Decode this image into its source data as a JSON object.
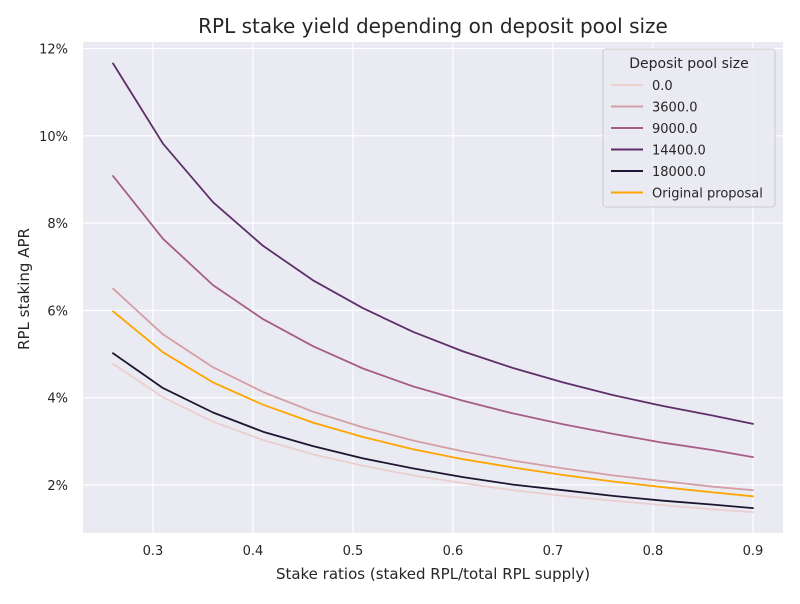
{
  "chart_data": {
    "type": "line",
    "title": "RPL stake yield depending on deposit pool size",
    "xlabel": "Stake ratios (staked RPL/total RPL supply)",
    "ylabel": "RPL staking APR",
    "xlim": [
      0.23,
      0.93
    ],
    "ylim": [
      0.009,
      0.1215
    ],
    "x_ticks": [
      0.3,
      0.4,
      0.5,
      0.6,
      0.7,
      0.8,
      0.9
    ],
    "x_tick_labels": [
      "0.3",
      "0.4",
      "0.5",
      "0.6",
      "0.7",
      "0.8",
      "0.9"
    ],
    "y_ticks": [
      0.02,
      0.04,
      0.06,
      0.08,
      0.1,
      0.12
    ],
    "y_tick_labels": [
      "2%",
      "4%",
      "6%",
      "8%",
      "10%",
      "12%"
    ],
    "grid": true,
    "background_color": "#eaeaf2",
    "legend": {
      "title": "Deposit pool size",
      "position": "top-right"
    },
    "x": [
      0.26,
      0.31,
      0.36,
      0.41,
      0.46,
      0.51,
      0.56,
      0.61,
      0.66,
      0.71,
      0.76,
      0.81,
      0.86,
      0.9
    ],
    "series": [
      {
        "name": "0.0",
        "color": "#ebcfcf",
        "values": [
          0.0478,
          0.0401,
          0.0345,
          0.0303,
          0.027,
          0.0244,
          0.0222,
          0.0204,
          0.0188,
          0.0175,
          0.0164,
          0.0154,
          0.0144,
          0.0138
        ]
      },
      {
        "name": "3600.0",
        "color": "#d49ea6",
        "values": [
          0.065,
          0.0545,
          0.047,
          0.0413,
          0.0368,
          0.0332,
          0.0302,
          0.0277,
          0.0256,
          0.0238,
          0.0222,
          0.0209,
          0.0196,
          0.0188
        ]
      },
      {
        "name": "9000.0",
        "color": "#a65d87",
        "values": [
          0.0908,
          0.0764,
          0.0658,
          0.058,
          0.0518,
          0.0467,
          0.0426,
          0.0393,
          0.0364,
          0.0339,
          0.0317,
          0.0297,
          0.028,
          0.0264
        ]
      },
      {
        "name": "14400.0",
        "color": "#5e2f69",
        "values": [
          0.1166,
          0.0982,
          0.0848,
          0.0748,
          0.0669,
          0.0605,
          0.0551,
          0.0506,
          0.0468,
          0.0435,
          0.0406,
          0.0381,
          0.0359,
          0.034
        ]
      },
      {
        "name": "18000.0",
        "color": "#1d1532",
        "values": [
          0.0502,
          0.0422,
          0.0366,
          0.0322,
          0.0289,
          0.0261,
          0.0238,
          0.0218,
          0.0201,
          0.0188,
          0.0175,
          0.0164,
          0.0155,
          0.0147
        ]
      },
      {
        "name": "Original proposal",
        "color": "#ffa500",
        "values": [
          0.0598,
          0.0504,
          0.0435,
          0.0384,
          0.0343,
          0.031,
          0.0282,
          0.0259,
          0.024,
          0.0223,
          0.0208,
          0.0195,
          0.0183,
          0.0174
        ]
      }
    ]
  }
}
